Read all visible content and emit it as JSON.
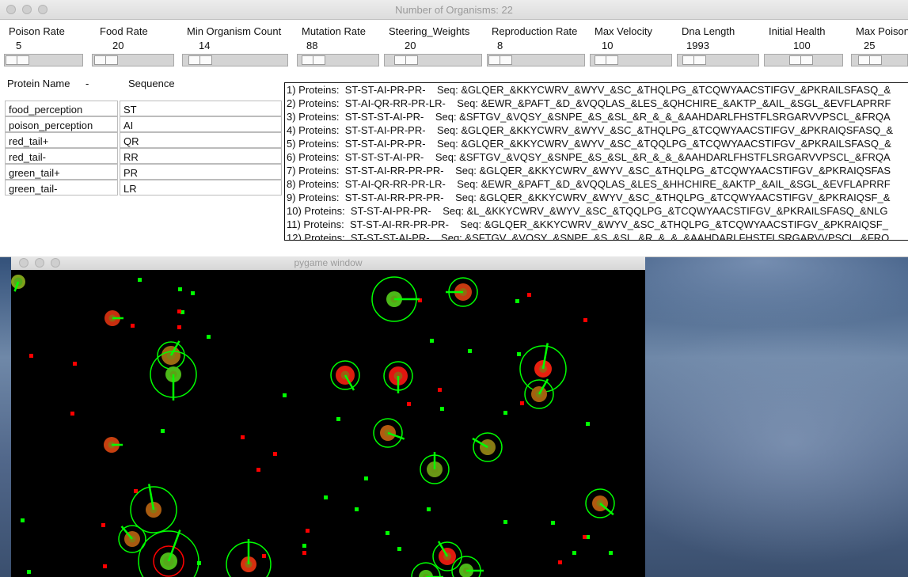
{
  "window": {
    "title": "Number of Organisms: 22"
  },
  "params": [
    {
      "label": "Poison Rate",
      "value": "5",
      "level": 0.05
    },
    {
      "label": "Food Rate",
      "value": "20",
      "level": 0.2
    },
    {
      "label": "Min Organism Count",
      "value": "14",
      "level": 0.14
    },
    {
      "label": "Mutation Rate",
      "value": "88",
      "level": 0.88
    },
    {
      "label": "Steering_Weights",
      "value": "20",
      "level": 0.2
    },
    {
      "label": "Reproduction Rate",
      "value": "8",
      "level": 0.08
    },
    {
      "label": "Max Velocity",
      "value": "10",
      "level": 0.1
    },
    {
      "label": "Dna Length",
      "value": "1993",
      "level": 0.3
    },
    {
      "label": "Initial Health",
      "value": "100",
      "level": 0.5
    },
    {
      "label": "Max Poison",
      "value": "25",
      "level": 0.25
    }
  ],
  "protein_table": {
    "header_name": "Protein Name",
    "header_dash": "-",
    "header_seq": "Sequence",
    "rows": [
      {
        "name": "food_perception",
        "seq": "ST"
      },
      {
        "name": "poison_perception",
        "seq": "AI"
      },
      {
        "name": "red_tail+",
        "seq": "QR"
      },
      {
        "name": "red_tail-",
        "seq": "RR"
      },
      {
        "name": "green_tail+",
        "seq": "PR"
      },
      {
        "name": "green_tail-",
        "seq": "LR"
      }
    ]
  },
  "organisms": [
    "1) Proteins:  ST-ST-AI-PR-PR-    Seq: &GLQER_&KKYCWRV_&WYV_&SC_&THQLPG_&TCQWYAACSTIFGV_&PKRAILSFASQ_&",
    "2) Proteins:  ST-AI-QR-RR-PR-LR-    Seq: &EWR_&PAFT_&D_&VQQLAS_&LES_&QHCHIRE_&AKTP_&AIL_&SGL_&EVFLAPRRF",
    "3) Proteins:  ST-ST-ST-AI-PR-    Seq: &SFTGV_&VQSY_&SNPE_&S_&SL_&R_&_&_&AAHDARLFHSTFLSRGARVVPSCL_&FRQA",
    "4) Proteins:  ST-ST-AI-PR-PR-    Seq: &GLQER_&KKYCWRV_&WYV_&SC_&THQLPG_&TCQWYAACSTIFGV_&PKRAIQSFASQ_&",
    "5) Proteins:  ST-ST-AI-PR-PR-    Seq: &GLQER_&KKYCWRV_&WYV_&SC_&TQQLPG_&TCQWYAACSTIFGV_&PKRAILSFASQ_&",
    "6) Proteins:  ST-ST-ST-AI-PR-    Seq: &SFTGV_&VQSY_&SNPE_&S_&SL_&R_&_&_&AAHDARLFHSTFLSRGARVVPSCL_&FRQA",
    "7) Proteins:  ST-ST-AI-RR-PR-PR-    Seq: &GLQER_&KKYCWRV_&WYV_&SC_&THQLPG_&TCQWYAACSTIFGV_&PKRAIQSFAS",
    "8) Proteins:  ST-AI-QR-RR-PR-LR-    Seq: &EWR_&PAFT_&D_&VQQLAS_&LES_&HHCHIRE_&AKTP_&AIL_&SGL_&EVFLAPRRF",
    "9) Proteins:  ST-ST-AI-RR-PR-PR-    Seq: &GLQER_&KKYCWRV_&WYV_&SC_&THQLPG_&TCQWYAACSTIFGV_&PKRAIQSF_&",
    "10) Proteins:  ST-ST-AI-PR-PR-    Seq: &L_&KKYCWRV_&WYV_&SC_&TQQLPG_&TCQWYAACSTIFGV_&PKRAILSFASQ_&NLG",
    "11) Proteins:  ST-ST-AI-RR-PR-PR-    Seq: &GLQER_&KKYCWRV_&WYV_&SC_&THQLPG_&TCQWYAACSTIFGV_&PKRAIQSF_",
    "12) Proteins:  ST-ST-ST-AI-PR-    Seq: &SFTGV_&VQSY_&SNPE_&S_&SL_&R_&_&_&AAHDARLFHSTFLSRGARVVPSCL_&FRQ"
  ],
  "pygame": {
    "title": "pygame window",
    "colors": {
      "food": "#00ff00",
      "poison": "#ff0000",
      "background": "#000000"
    }
  }
}
